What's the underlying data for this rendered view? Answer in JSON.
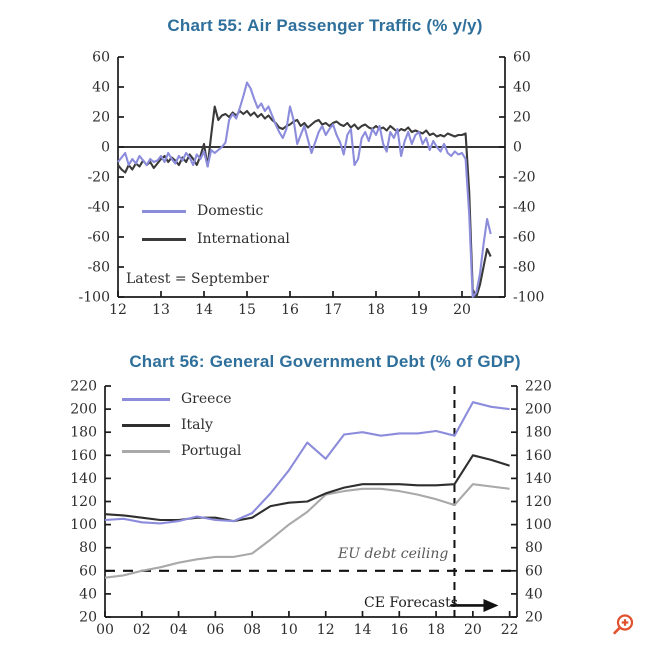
{
  "chart_data": [
    {
      "type": "line",
      "title": "Chart 55: Air Passenger Traffic (% y/y)",
      "note": "Latest = September",
      "x_start": 2012,
      "x_step": 0.0833333,
      "xlim": [
        2012,
        2021
      ],
      "ylim": [
        -100,
        60
      ],
      "x_ticks": [
        2012,
        2013,
        2014,
        2015,
        2016,
        2017,
        2018,
        2019,
        2020
      ],
      "x_tick_labels": [
        "12",
        "13",
        "14",
        "15",
        "16",
        "17",
        "18",
        "19",
        "20"
      ],
      "y_ticks": [
        60,
        40,
        20,
        0,
        -20,
        -40,
        -60,
        -80,
        -100
      ],
      "zero_line": true,
      "grid": false,
      "legend_position": "inside-left",
      "series": [
        {
          "name": "Domestic",
          "color": "#8c8cdc",
          "values": [
            -10,
            -7,
            -4,
            -12,
            -8,
            -11,
            -6,
            -9,
            -12,
            -8,
            -10,
            -9,
            -6,
            -10,
            -4,
            -8,
            -11,
            -6,
            -9,
            -4,
            -7,
            -12,
            -5,
            -8,
            -3,
            -13,
            -2,
            -4,
            -2,
            0,
            3,
            18,
            22,
            19,
            26,
            34,
            43,
            39,
            32,
            26,
            29,
            24,
            27,
            21,
            15,
            10,
            6,
            12,
            27,
            18,
            2,
            8,
            14,
            5,
            -4,
            3,
            10,
            14,
            8,
            12,
            15,
            8,
            3,
            -5,
            8,
            12,
            -12,
            -8,
            6,
            10,
            4,
            12,
            8,
            14,
            2,
            -3,
            10,
            6,
            12,
            -6,
            4,
            10,
            2,
            8,
            10,
            2,
            6,
            -2,
            4,
            0,
            -3,
            2,
            -4,
            -6,
            -3,
            -5,
            -4,
            -8,
            -45,
            -100,
            -97,
            -85,
            -65,
            -48,
            -58
          ]
        },
        {
          "name": "International",
          "color": "#3a3a3a",
          "values": [
            -12,
            -15,
            -17,
            -12,
            -15,
            -11,
            -13,
            -9,
            -12,
            -10,
            -14,
            -11,
            -8,
            -6,
            -10,
            -7,
            -9,
            -12,
            -7,
            -10,
            -5,
            -8,
            -12,
            -6,
            2,
            -13,
            8,
            27,
            18,
            21,
            22,
            20,
            23,
            21,
            24,
            22,
            24,
            21,
            23,
            20,
            22,
            19,
            21,
            18,
            16,
            13,
            12,
            14,
            15,
            17,
            18,
            14,
            16,
            13,
            15,
            17,
            18,
            15,
            16,
            14,
            16,
            17,
            15,
            14,
            16,
            13,
            15,
            12,
            14,
            15,
            13,
            12,
            14,
            12,
            13,
            11,
            14,
            12,
            10,
            12,
            11,
            13,
            10,
            11,
            10,
            9,
            11,
            8,
            9,
            7,
            8,
            7,
            9,
            8,
            7,
            8,
            8,
            9,
            -30,
            -95,
            -100,
            -92,
            -80,
            -68,
            -73
          ]
        }
      ]
    },
    {
      "type": "line",
      "title": "Chart 56: General Government Debt (% of GDP)",
      "x": [
        2000,
        2001,
        2002,
        2003,
        2004,
        2005,
        2006,
        2007,
        2008,
        2009,
        2010,
        2011,
        2012,
        2013,
        2014,
        2015,
        2016,
        2017,
        2018,
        2019,
        2020,
        2021,
        2022
      ],
      "xlim": [
        2000,
        2022.4
      ],
      "ylim": [
        20,
        220
      ],
      "x_ticks": [
        2000,
        2002,
        2004,
        2006,
        2008,
        2010,
        2012,
        2014,
        2016,
        2018,
        2020,
        2022
      ],
      "x_tick_labels": [
        "00",
        "02",
        "04",
        "06",
        "08",
        "10",
        "12",
        "14",
        "16",
        "18",
        "20",
        "22"
      ],
      "y_ticks": [
        220,
        200,
        180,
        160,
        140,
        120,
        100,
        80,
        60,
        40,
        20
      ],
      "zero_line": false,
      "grid": false,
      "legend_position": "inside-left",
      "annotations": {
        "ceiling_label": "EU debt ceiling",
        "ceiling_value": 60,
        "forecast_label": "CE Forecasts",
        "forecast_start_year": 2019
      },
      "series": [
        {
          "name": "Greece",
          "color": "#8c8cdc",
          "values": [
            104,
            105,
            102,
            101,
            103,
            107,
            104,
            103,
            110,
            127,
            147,
            171,
            157,
            178,
            180,
            177,
            179,
            179,
            181,
            177,
            206,
            202,
            200
          ]
        },
        {
          "name": "Italy",
          "color": "#2f2f2f",
          "values": [
            109,
            108,
            106,
            104,
            104,
            106,
            106,
            103,
            106,
            116,
            119,
            120,
            127,
            132,
            135,
            135,
            135,
            134,
            134,
            135,
            160,
            156,
            151
          ]
        },
        {
          "name": "Portugal",
          "color": "#a9a9a9",
          "values": [
            54,
            56,
            60,
            63,
            67,
            70,
            72,
            72,
            75,
            87,
            100,
            111,
            126,
            129,
            131,
            131,
            129,
            126,
            122,
            117,
            135,
            133,
            131
          ]
        }
      ]
    }
  ],
  "ui": {
    "zoom_icon_color": "#e2512e"
  }
}
